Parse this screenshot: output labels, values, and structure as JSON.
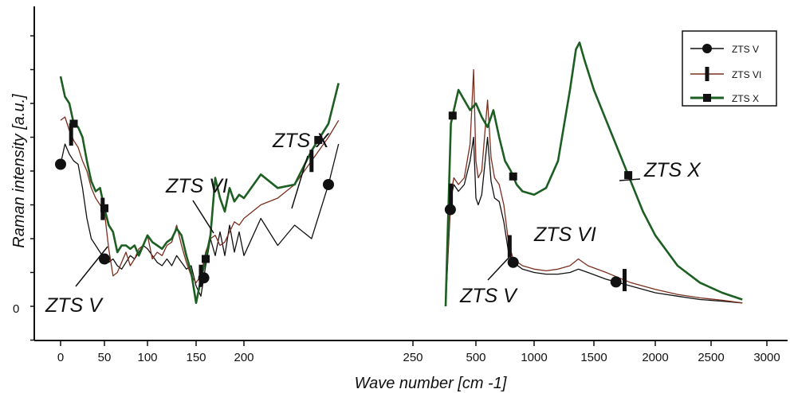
{
  "chart_data": {
    "type": "line",
    "ylabel": "Raman intensity [a.u.]",
    "xlabel": "Wave number [cm -1]",
    "y_tick_label": "0",
    "legend_position": "top-right",
    "panels": [
      {
        "name": "left",
        "xlim": [
          -20,
          250
        ],
        "ylim": [
          -1,
          10
        ],
        "x_ticks": [
          "0",
          "50",
          "100",
          "150",
          "200",
          "250"
        ],
        "series": [
          {
            "name": "ZTS V",
            "color": "#111111",
            "x": [
              0,
              5,
              10,
              15,
              20,
              25,
              30,
              35,
              40,
              45,
              50,
              55,
              60,
              65,
              70,
              75,
              80,
              85,
              90,
              95,
              100,
              105,
              110,
              115,
              120,
              125,
              130,
              135,
              140,
              145,
              150,
              155,
              160,
              165,
              170,
              175,
              180,
              185,
              190,
              195,
              200,
              205,
              210,
              215,
              220,
              225,
              228
            ],
            "y": [
              4.2,
              4.8,
              4.5,
              4.3,
              4.2,
              3.5,
              2.6,
              2.0,
              1.8,
              1.6,
              1.4,
              1.3,
              1.4,
              1.2,
              1.1,
              1.3,
              1.5,
              1.4,
              1.6,
              1.8,
              1.7,
              1.5,
              1.3,
              1.2,
              1.4,
              1.2,
              1.5,
              1.3,
              1.1,
              1.2,
              0.6,
              0.3,
              1.2,
              2.0,
              1.5,
              2.2,
              1.5,
              2.4,
              1.6,
              2.2,
              1.5,
              2.6,
              1.8,
              2.4,
              2.0,
              3.6,
              4.8
            ],
            "markers_x": [
              0,
              50,
              158,
              225
            ]
          },
          {
            "name": "ZTS VI",
            "color": "#7a2e1e",
            "x": [
              0,
              5,
              10,
              15,
              20,
              25,
              30,
              35,
              40,
              45,
              50,
              55,
              60,
              65,
              70,
              75,
              80,
              85,
              90,
              95,
              100,
              105,
              110,
              115,
              120,
              125,
              130,
              135,
              140,
              145,
              150,
              155,
              160,
              165,
              170,
              175,
              180,
              185,
              190,
              195,
              200,
              205,
              210,
              215,
              220,
              225,
              228
            ],
            "y": [
              5.5,
              5.6,
              5.2,
              4.9,
              4.7,
              4.3,
              4.0,
              3.5,
              3.2,
              3.0,
              2.8,
              1.7,
              0.9,
              1.0,
              1.3,
              1.6,
              1.2,
              1.4,
              1.7,
              1.8,
              2.1,
              1.4,
              1.6,
              1.5,
              1.8,
              1.9,
              2.4,
              1.8,
              1.3,
              0.9,
              0.7,
              0.9,
              1.6,
              2.0,
              2.1,
              1.8,
              1.9,
              2.2,
              2.5,
              2.4,
              2.6,
              3.0,
              3.2,
              3.6,
              4.3,
              5.0,
              5.5
            ],
            "markers_x": [
              12,
              48,
              155,
              220
            ]
          },
          {
            "name": "ZTS X",
            "color": "#1d5e22",
            "x": [
              0,
              5,
              10,
              15,
              20,
              25,
              30,
              35,
              40,
              45,
              50,
              55,
              60,
              65,
              70,
              75,
              80,
              85,
              90,
              95,
              100,
              105,
              110,
              115,
              120,
              125,
              130,
              135,
              140,
              145,
              150,
              155,
              160,
              165,
              170,
              175,
              180,
              185,
              190,
              195,
              200,
              205,
              210,
              215,
              220,
              225,
              228
            ],
            "y": [
              6.8,
              6.2,
              6.0,
              5.4,
              5.3,
              5.0,
              4.3,
              3.7,
              3.4,
              3.5,
              2.9,
              2.4,
              2.2,
              1.6,
              1.8,
              1.8,
              1.7,
              1.8,
              1.5,
              1.8,
              2.1,
              1.9,
              1.8,
              1.7,
              1.9,
              2.0,
              2.3,
              2.1,
              1.5,
              1.0,
              0.1,
              0.8,
              1.4,
              2.1,
              3.8,
              3.2,
              2.8,
              3.5,
              3.1,
              3.3,
              3.2,
              3.9,
              3.5,
              3.6,
              4.6,
              5.4,
              6.6
            ],
            "markers_x": [
              15,
              50,
              160,
              222
            ]
          }
        ]
      },
      {
        "name": "right",
        "xlim": [
          50,
          3100
        ],
        "ylim": [
          -1,
          10
        ],
        "x_ticks": [
          "500",
          "1000",
          "1500",
          "2000",
          "2500",
          "3000"
        ],
        "series": [
          {
            "name": "ZTS V",
            "color": "#111111",
            "x": [
              240,
              260,
              285,
              310,
              350,
              400,
              450,
              480,
              500,
              520,
              550,
              600,
              630,
              660,
              700,
              740,
              780,
              820,
              900,
              1000,
              1100,
              1200,
              1300,
              1370,
              1450,
              1600,
              1800,
              2000,
              2200,
              2400,
              2600,
              2780
            ],
            "y": [
              0.0,
              1.5,
              3.2,
              3.6,
              3.4,
              3.6,
              4.3,
              5.0,
              3.2,
              3.0,
              3.3,
              5.0,
              3.7,
              3.2,
              3.1,
              2.5,
              1.6,
              1.3,
              1.1,
              1.0,
              0.95,
              0.95,
              1.0,
              1.1,
              1.0,
              0.8,
              0.6,
              0.4,
              0.3,
              0.2,
              0.15,
              0.1
            ],
            "markers_x": [
              280,
              820,
              1680
            ]
          },
          {
            "name": "ZTS VI",
            "color": "#7a2e1e",
            "x": [
              240,
              260,
              285,
              310,
              350,
              400,
              450,
              480,
              500,
              520,
              550,
              600,
              630,
              660,
              700,
              740,
              780,
              820,
              900,
              1000,
              1100,
              1200,
              1300,
              1370,
              1450,
              1600,
              1800,
              2000,
              2200,
              2400,
              2600,
              2780
            ],
            "y": [
              0.0,
              1.6,
              3.3,
              3.8,
              3.6,
              3.8,
              4.8,
              7.0,
              4.3,
              3.8,
              4.0,
              6.1,
              4.4,
              3.8,
              3.6,
              3.0,
              1.9,
              1.4,
              1.2,
              1.1,
              1.05,
              1.1,
              1.2,
              1.4,
              1.2,
              1.0,
              0.7,
              0.5,
              0.35,
              0.25,
              0.18,
              0.1
            ],
            "markers_x": [
              285,
              790,
              1750
            ]
          },
          {
            "name": "ZTS X",
            "color": "#1d5e22",
            "x": [
              240,
              260,
              285,
              310,
              350,
              400,
              450,
              500,
              550,
              600,
              650,
              700,
              750,
              800,
              850,
              900,
              1000,
              1100,
              1200,
              1300,
              1350,
              1380,
              1420,
              1500,
              1600,
              1700,
              1800,
              1900,
              2000,
              2200,
              2400,
              2600,
              2780
            ],
            "y": [
              0.0,
              2.5,
              5.4,
              5.8,
              6.4,
              6.1,
              5.8,
              6.0,
              5.6,
              5.3,
              5.8,
              5.0,
              4.3,
              4.0,
              3.6,
              3.4,
              3.3,
              3.5,
              4.3,
              6.4,
              7.6,
              7.8,
              7.3,
              6.4,
              5.5,
              4.6,
              3.7,
              2.8,
              2.1,
              1.2,
              0.7,
              0.4,
              0.2
            ],
            "markers_x": [
              300,
              820,
              1780
            ]
          }
        ]
      }
    ],
    "legend": [
      "ZTS V",
      "ZTS VI",
      "ZTS X"
    ],
    "annotations": [
      "ZTS V",
      "ZTS VI",
      "ZTS X",
      "ZTS V",
      "ZTS VI",
      "ZTS X"
    ]
  }
}
